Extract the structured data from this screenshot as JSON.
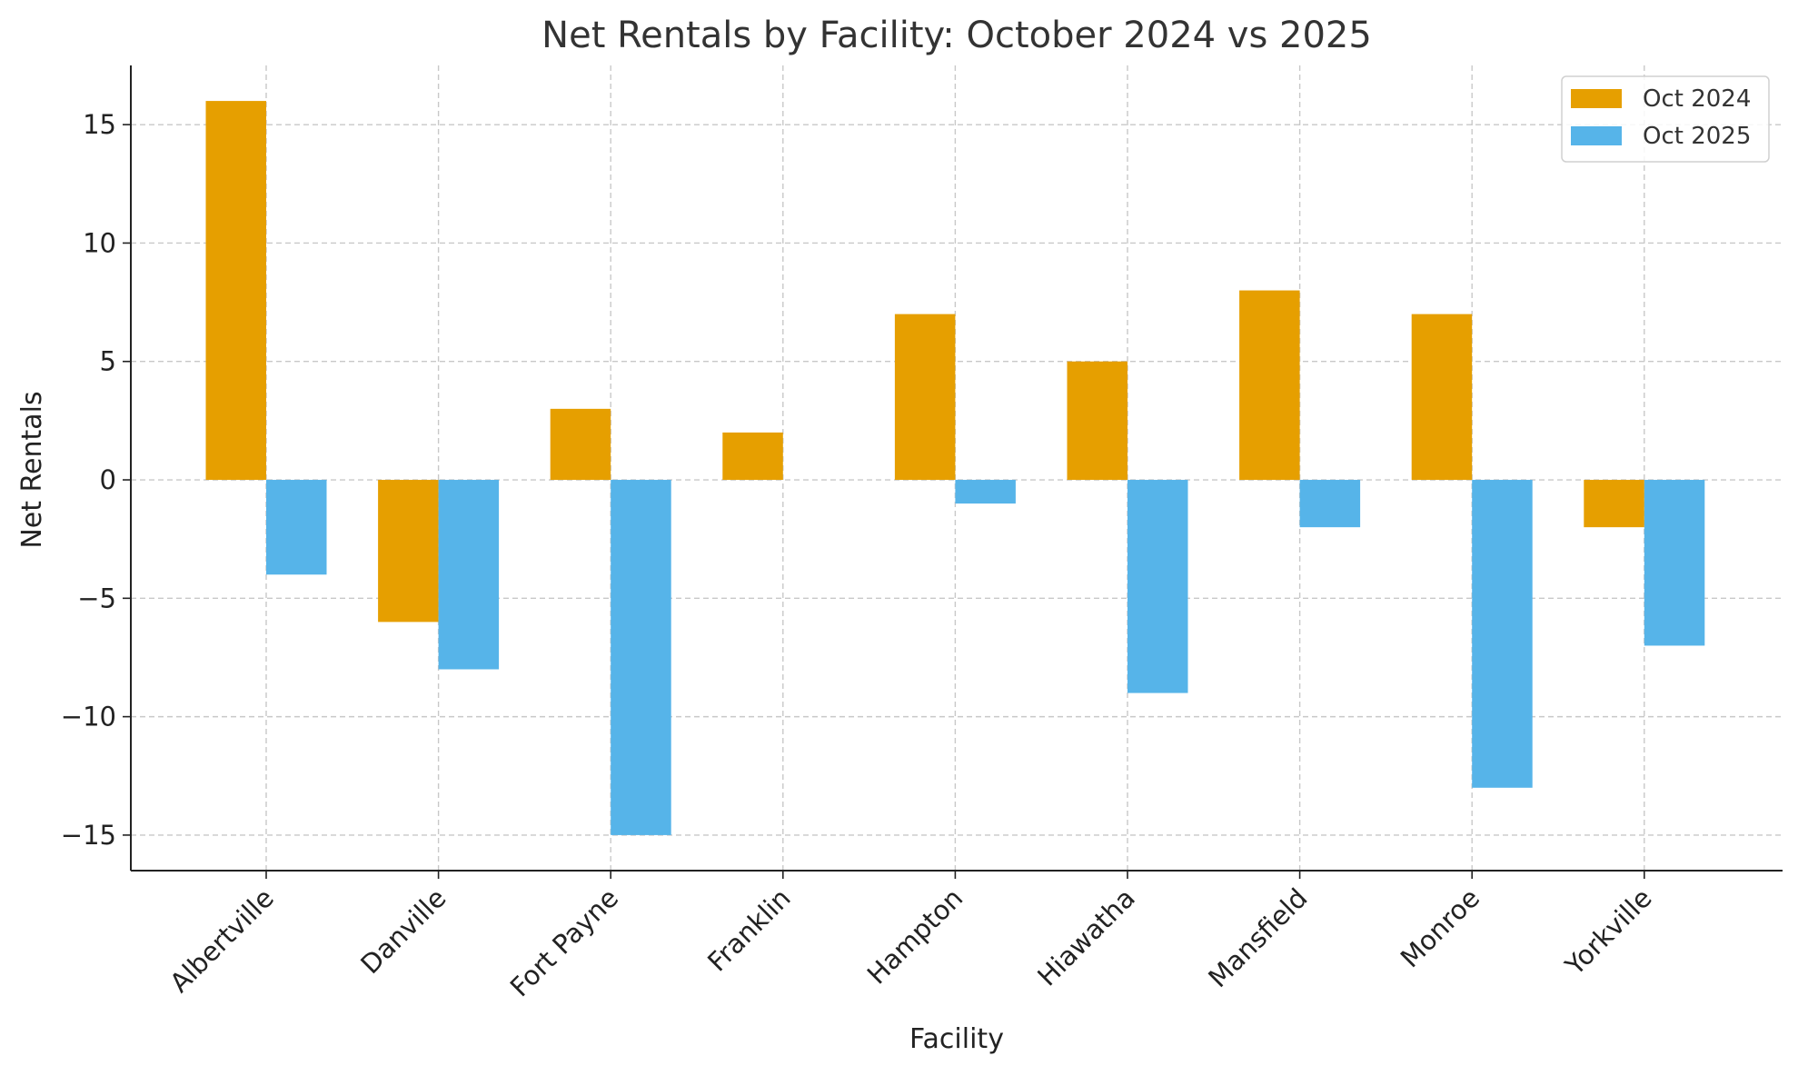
{
  "chart_data": {
    "type": "bar",
    "title": "Net Rentals by Facility: October 2024 vs 2025",
    "xlabel": "Facility",
    "ylabel": "Net Rentals",
    "categories": [
      "Albertville",
      "Danville",
      "Fort Payne",
      "Franklin",
      "Hampton",
      "Hiawatha",
      "Mansfield",
      "Monroe",
      "Yorkville"
    ],
    "series": [
      {
        "name": "Oct 2024",
        "color": "#E69F00",
        "values": [
          16,
          -6,
          3,
          2,
          7,
          5,
          8,
          7,
          -2
        ]
      },
      {
        "name": "Oct 2025",
        "color": "#56B4E9",
        "values": [
          -4,
          -8,
          -15,
          0,
          -1,
          -9,
          -2,
          -13,
          -7
        ]
      }
    ],
    "ylim": [
      -16.5,
      17.5
    ],
    "yticks": [
      15,
      10,
      5,
      0,
      -5,
      -10,
      -15
    ],
    "ytick_labels": [
      "15",
      "10",
      "5",
      "0",
      "−5",
      "−10",
      "−15"
    ],
    "grid": true,
    "legend_position": "top-right"
  }
}
